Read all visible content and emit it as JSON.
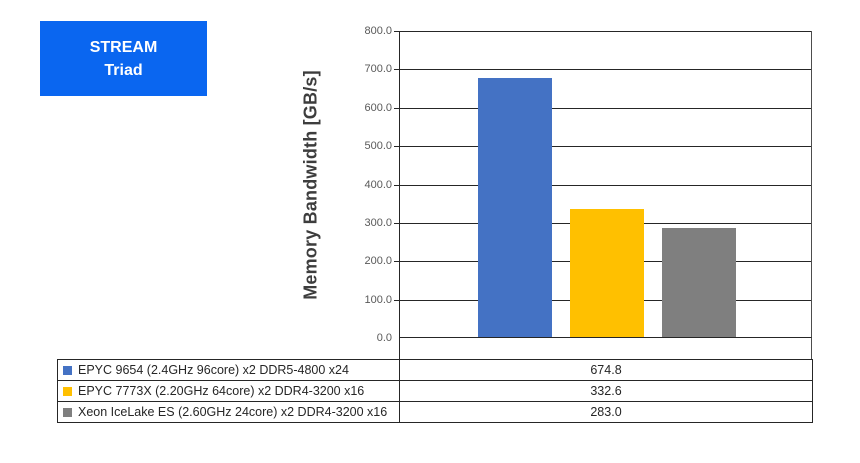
{
  "title_box": {
    "line1": "STREAM",
    "line2": "Triad",
    "bg_color": "#0A66F0",
    "text_color": "#FFFFFF"
  },
  "chart_data": {
    "type": "bar",
    "title": "STREAM Triad",
    "xlabel": "",
    "ylabel": "Memory Bandwidth [GB/s]",
    "ylim": [
      0,
      800
    ],
    "ytick_step": 100,
    "yticks": [
      "800.0",
      "700.0",
      "600.0",
      "500.0",
      "400.0",
      "300.0",
      "200.0",
      "100.0",
      "0.0"
    ],
    "grid": "horizontal-major",
    "legend_position": "data-table-below-plot",
    "categories": [
      ""
    ],
    "series": [
      {
        "name": "EPYC 9654 (2.4GHz 96core) x2 DDR5-4800 x24",
        "values": [
          674.8
        ],
        "value_label": "674.8",
        "color": "#4472C4"
      },
      {
        "name": "EPYC 7773X (2.20GHz 64core) x2 DDR4-3200 x16",
        "values": [
          332.6
        ],
        "value_label": "332.6",
        "color": "#FFC000"
      },
      {
        "name": "Xeon IceLake ES (2.60GHz 24core) x2 DDR4-3200 x16",
        "values": [
          283.0
        ],
        "value_label": "283.0",
        "color": "#7F7F7F"
      }
    ]
  }
}
